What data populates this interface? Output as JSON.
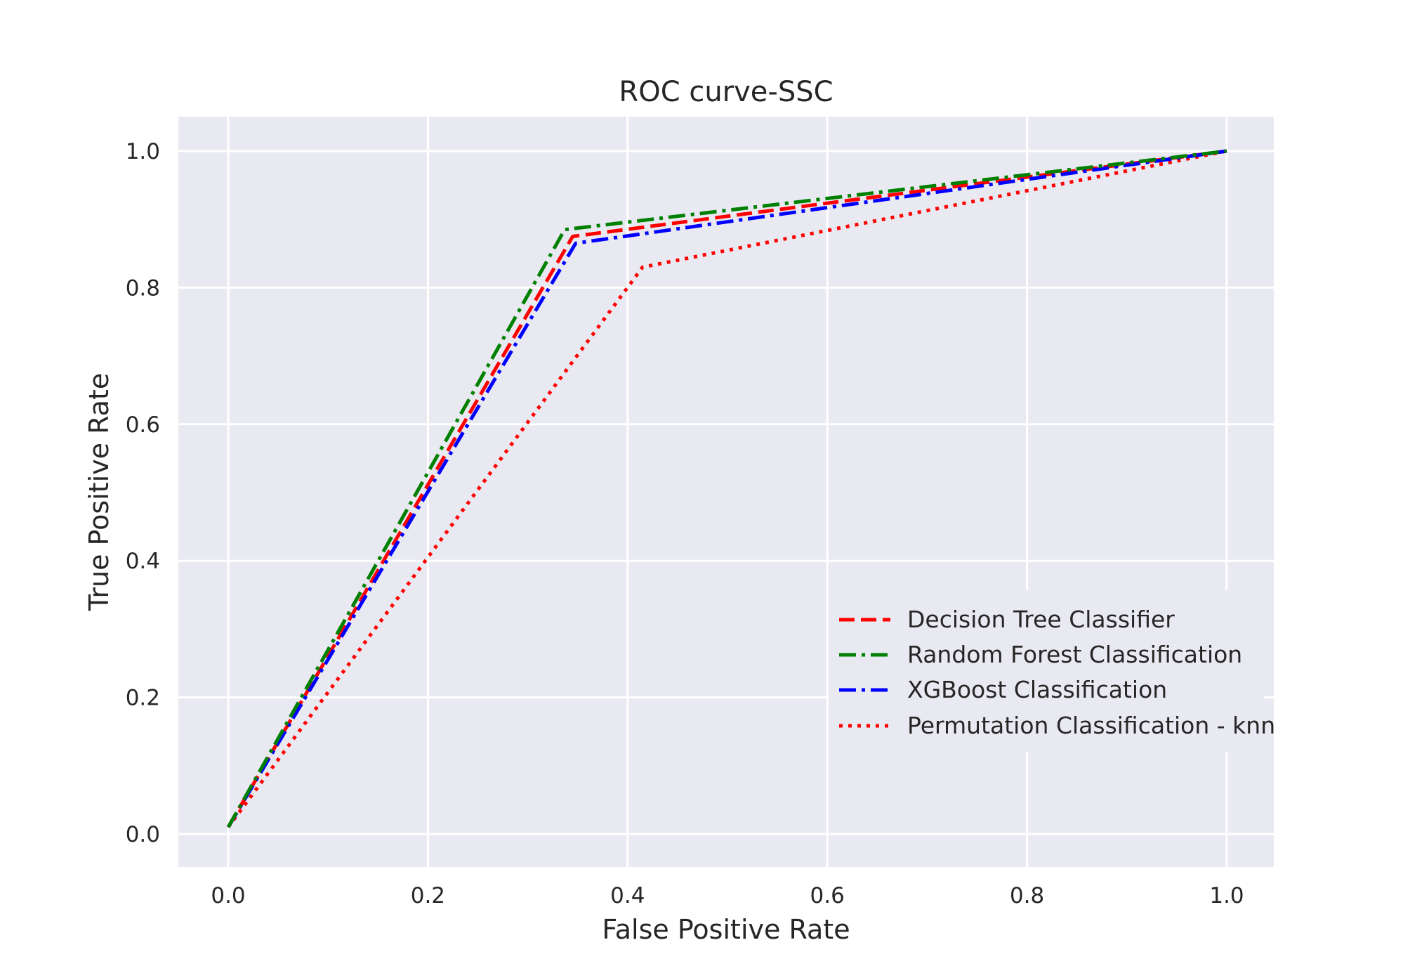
{
  "chart_data": {
    "type": "line",
    "title": "ROC curve-SSC",
    "xlabel": "False Positive Rate",
    "ylabel": "True Positive Rate",
    "xlim": [
      -0.05,
      1.05
    ],
    "ylim": [
      -0.05,
      1.05
    ],
    "xticks": [
      0.0,
      0.2,
      0.4,
      0.6,
      0.8,
      1.0
    ],
    "yticks": [
      0.0,
      0.2,
      0.4,
      0.6,
      0.8,
      1.0
    ],
    "xtick_labels": [
      "0.0",
      "0.2",
      "0.4",
      "0.6",
      "0.8",
      "1.0"
    ],
    "ytick_labels": [
      "0.0",
      "0.2",
      "0.4",
      "0.6",
      "0.8",
      "1.0"
    ],
    "grid": true,
    "background": "#e9e9f1",
    "legend_position": "lower-right",
    "series": [
      {
        "name": "Decision Tree Classifier",
        "color": "#ff0000",
        "style": "dashed",
        "x": [
          0.0,
          0.345,
          1.0
        ],
        "y": [
          0.01,
          0.875,
          1.0
        ]
      },
      {
        "name": "Random Forest Classification",
        "color": "#008000",
        "style": "dashdot",
        "x": [
          0.0,
          0.337,
          1.0
        ],
        "y": [
          0.01,
          0.885,
          1.0
        ]
      },
      {
        "name": "XGBoost Classification",
        "color": "#0000ff",
        "style": "dashdot",
        "x": [
          0.0,
          0.348,
          1.0
        ],
        "y": [
          0.01,
          0.865,
          1.0
        ]
      },
      {
        "name": "Permutation Classification - knn",
        "color": "#ff0000",
        "style": "dotted",
        "x": [
          0.0,
          0.415,
          1.0
        ],
        "y": [
          0.01,
          0.83,
          1.0
        ]
      }
    ]
  }
}
